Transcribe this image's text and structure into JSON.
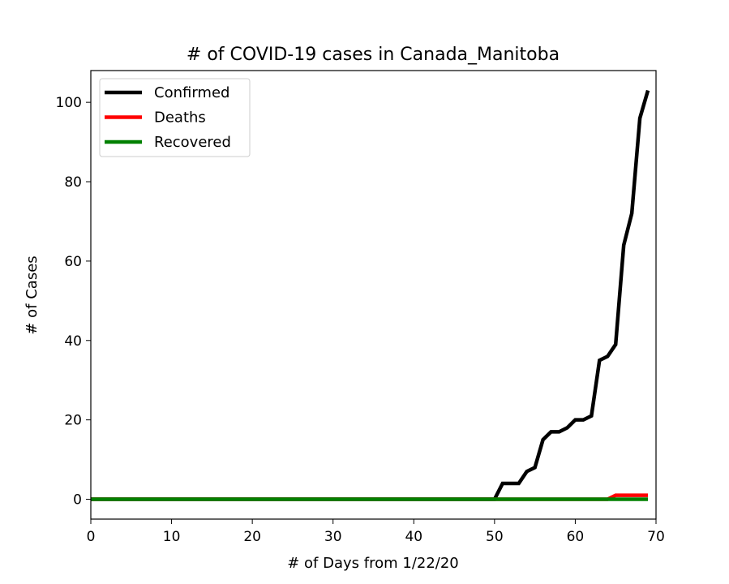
{
  "chart_data": {
    "type": "line",
    "title": "# of COVID-19 cases in Canada_Manitoba",
    "xlabel": "# of Days from 1/22/20",
    "ylabel": "# of Cases",
    "xlim": [
      0,
      70
    ],
    "ylim": [
      -5,
      108
    ],
    "xticks": [
      0,
      10,
      20,
      30,
      40,
      50,
      60,
      70
    ],
    "yticks": [
      0,
      20,
      40,
      60,
      80,
      100
    ],
    "grid": false,
    "legend_position": "top-left",
    "x": [
      0,
      1,
      2,
      3,
      4,
      5,
      6,
      7,
      8,
      9,
      10,
      11,
      12,
      13,
      14,
      15,
      16,
      17,
      18,
      19,
      20,
      21,
      22,
      23,
      24,
      25,
      26,
      27,
      28,
      29,
      30,
      31,
      32,
      33,
      34,
      35,
      36,
      37,
      38,
      39,
      40,
      41,
      42,
      43,
      44,
      45,
      46,
      47,
      48,
      49,
      50,
      51,
      52,
      53,
      54,
      55,
      56,
      57,
      58,
      59,
      60,
      61,
      62,
      63,
      64,
      65,
      66,
      67,
      68,
      69
    ],
    "series": [
      {
        "name": "Confirmed",
        "color": "#000000",
        "values": [
          0,
          0,
          0,
          0,
          0,
          0,
          0,
          0,
          0,
          0,
          0,
          0,
          0,
          0,
          0,
          0,
          0,
          0,
          0,
          0,
          0,
          0,
          0,
          0,
          0,
          0,
          0,
          0,
          0,
          0,
          0,
          0,
          0,
          0,
          0,
          0,
          0,
          0,
          0,
          0,
          0,
          0,
          0,
          0,
          0,
          0,
          0,
          0,
          0,
          0,
          0,
          4,
          4,
          4,
          7,
          8,
          15,
          17,
          17,
          18,
          20,
          20,
          21,
          35,
          36,
          39,
          64,
          72,
          96,
          103
        ]
      },
      {
        "name": "Deaths",
        "color": "#ff0000",
        "values": [
          0,
          0,
          0,
          0,
          0,
          0,
          0,
          0,
          0,
          0,
          0,
          0,
          0,
          0,
          0,
          0,
          0,
          0,
          0,
          0,
          0,
          0,
          0,
          0,
          0,
          0,
          0,
          0,
          0,
          0,
          0,
          0,
          0,
          0,
          0,
          0,
          0,
          0,
          0,
          0,
          0,
          0,
          0,
          0,
          0,
          0,
          0,
          0,
          0,
          0,
          0,
          0,
          0,
          0,
          0,
          0,
          0,
          0,
          0,
          0,
          0,
          0,
          0,
          0,
          0,
          1,
          1,
          1,
          1,
          1
        ]
      },
      {
        "name": "Recovered",
        "color": "#008000",
        "values": [
          0,
          0,
          0,
          0,
          0,
          0,
          0,
          0,
          0,
          0,
          0,
          0,
          0,
          0,
          0,
          0,
          0,
          0,
          0,
          0,
          0,
          0,
          0,
          0,
          0,
          0,
          0,
          0,
          0,
          0,
          0,
          0,
          0,
          0,
          0,
          0,
          0,
          0,
          0,
          0,
          0,
          0,
          0,
          0,
          0,
          0,
          0,
          0,
          0,
          0,
          0,
          0,
          0,
          0,
          0,
          0,
          0,
          0,
          0,
          0,
          0,
          0,
          0,
          0,
          0,
          0,
          0,
          0,
          0,
          0
        ]
      }
    ]
  }
}
